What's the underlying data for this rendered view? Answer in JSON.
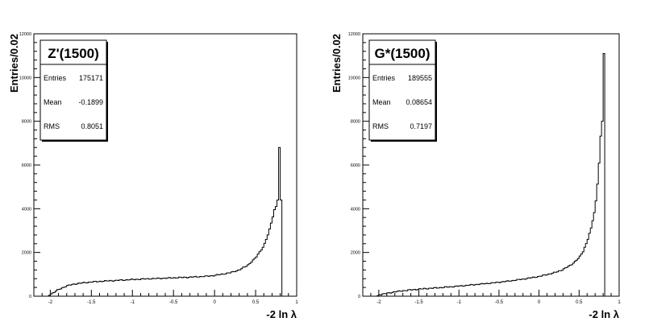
{
  "chart_data": [
    {
      "type": "histogram",
      "title": "",
      "xlabel": "-2 ln λ",
      "ylabel": "Entries/0.02",
      "xlim": [
        -2.2,
        1.0
      ],
      "ylim": [
        0,
        12000
      ],
      "x_ticks": [
        "-2",
        "-1.5",
        "-1",
        "-0.5",
        "0",
        "0.5",
        "1"
      ],
      "y_ticks": [
        "0",
        "2000",
        "4000",
        "6000",
        "8000",
        "10000",
        "12000"
      ],
      "grid": false,
      "stats_box": {
        "name": "Z'(1500)",
        "rows": [
          {
            "label": "Entries",
            "value": "175171"
          },
          {
            "label": "Mean",
            "value": "-0.1899"
          },
          {
            "label": "RMS",
            "value": "0.8051"
          }
        ],
        "placement": "top-left"
      },
      "histogram": {
        "bin_width": 0.02,
        "range_shape": [
          [
            -2.02,
            0
          ],
          [
            -2.0,
            80
          ],
          [
            -1.9,
            300
          ],
          [
            -1.8,
            470
          ],
          [
            -1.7,
            560
          ],
          [
            -1.6,
            610
          ],
          [
            -1.5,
            650
          ],
          [
            -1.3,
            700
          ],
          [
            -1.1,
            740
          ],
          [
            -0.9,
            780
          ],
          [
            -0.7,
            810
          ],
          [
            -0.5,
            840
          ],
          [
            -0.3,
            870
          ],
          [
            -0.1,
            910
          ],
          [
            0.0,
            950
          ],
          [
            0.1,
            1010
          ],
          [
            0.2,
            1080
          ],
          [
            0.3,
            1200
          ],
          [
            0.4,
            1400
          ],
          [
            0.5,
            1750
          ],
          [
            0.6,
            2300
          ],
          [
            0.66,
            2900
          ],
          [
            0.7,
            3500
          ],
          [
            0.74,
            4100
          ]
        ],
        "peak_bins": [
          {
            "x": 0.76,
            "value": 4400
          },
          {
            "x": 0.78,
            "value": 6800
          },
          {
            "x": 0.8,
            "value": 4400
          }
        ],
        "end": 0.82
      }
    },
    {
      "type": "histogram",
      "title": "",
      "xlabel": "-2 ln λ",
      "ylabel": "Entries/0.02",
      "xlim": [
        -2.2,
        1.0
      ],
      "ylim": [
        0,
        12000
      ],
      "x_ticks": [
        "-2",
        "-1.5",
        "-1",
        "-0.5",
        "0",
        "0.5",
        "1"
      ],
      "y_ticks": [
        "0",
        "2000",
        "4000",
        "6000",
        "8000",
        "10000",
        "12000"
      ],
      "grid": false,
      "stats_box": {
        "name": "G*(1500)",
        "rows": [
          {
            "label": "Entries",
            "value": "189555"
          },
          {
            "label": "Mean",
            "value": "0.08654"
          },
          {
            "label": "RMS",
            "value": "0.7197"
          }
        ],
        "placement": "top-left"
      },
      "histogram": {
        "bin_width": 0.02,
        "range_shape": [
          [
            -2.02,
            0
          ],
          [
            -2.0,
            60
          ],
          [
            -1.8,
            200
          ],
          [
            -1.6,
            290
          ],
          [
            -1.4,
            350
          ],
          [
            -1.2,
            400
          ],
          [
            -1.0,
            460
          ],
          [
            -0.8,
            530
          ],
          [
            -0.6,
            600
          ],
          [
            -0.4,
            680
          ],
          [
            -0.2,
            780
          ],
          [
            0.0,
            900
          ],
          [
            0.2,
            1080
          ],
          [
            0.3,
            1220
          ],
          [
            0.4,
            1430
          ],
          [
            0.5,
            1750
          ],
          [
            0.55,
            2050
          ],
          [
            0.6,
            2500
          ],
          [
            0.65,
            3100
          ],
          [
            0.7,
            4000
          ],
          [
            0.72,
            4700
          ],
          [
            0.74,
            5600
          ],
          [
            0.76,
            6600
          ],
          [
            0.78,
            8000
          ]
        ],
        "peak_bins": [
          {
            "x": 0.8,
            "value": 11100
          }
        ],
        "end": 0.82
      }
    }
  ]
}
